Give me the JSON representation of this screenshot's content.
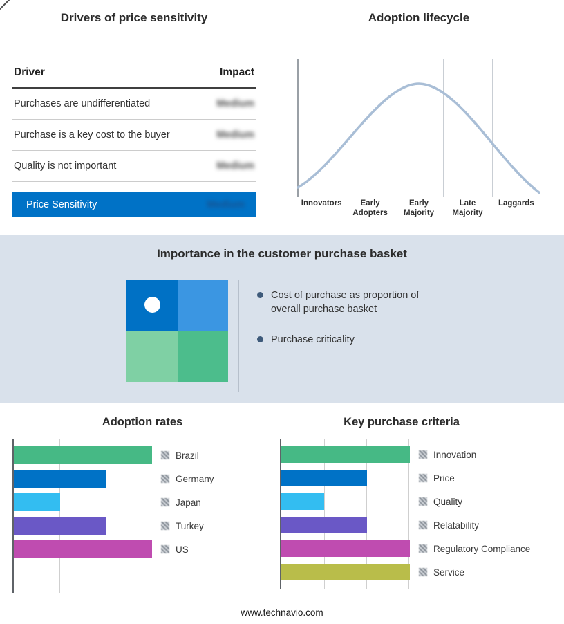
{
  "footer": {
    "url": "www.technavio.com"
  },
  "colors": {
    "accent_blue": "#0072c6",
    "band_background": "#d9e1eb",
    "curve_line": "#a9bed6",
    "bullet_dot": "#3e5a7a"
  },
  "drivers_panel": {
    "title": "Drivers of price sensitivity",
    "col_driver": "Driver",
    "col_impact": "Impact",
    "rows": [
      {
        "driver": "Purchases are undifferentiated",
        "impact": "Medium"
      },
      {
        "driver": "Purchase is a key cost to the buyer",
        "impact": "Medium"
      },
      {
        "driver": "Quality is not important",
        "impact": "Medium"
      }
    ],
    "summary": {
      "label": "Price Sensitivity",
      "impact": "Medium"
    }
  },
  "basket_panel": {
    "title": "Importance in the customer purchase basket",
    "bullets": [
      "Cost of purchase as proportion of overall purchase basket",
      "Purchase criticality"
    ],
    "quadrant_colors": [
      "#0071c5",
      "#3b96e2",
      "#7fd0a4",
      "#4cbd8c"
    ],
    "marker": "white-dot-top-left-quadrant"
  },
  "chart_data": [
    {
      "type": "line",
      "title": "Adoption lifecycle",
      "x_categories": [
        "Innovators",
        "Early Adopters",
        "Early Majority",
        "Late Majority",
        "Laggards"
      ],
      "values": [
        0.1,
        0.6,
        1.0,
        0.6,
        0.1
      ],
      "ylim": [
        0,
        1
      ],
      "curve": "bell",
      "line_color": "#a9bed6",
      "grid": true,
      "legend_position": "none"
    },
    {
      "type": "bar",
      "orientation": "horizontal",
      "title": "Adoption rates",
      "categories": [
        "Brazil",
        "Germany",
        "Japan",
        "Turkey",
        "US"
      ],
      "values": [
        3,
        2,
        1,
        2,
        3
      ],
      "colors": [
        "#46b985",
        "#0072c6",
        "#33bdf1",
        "#6a58c6",
        "#bf4cb0"
      ],
      "xlim": [
        0,
        3
      ],
      "grid": true,
      "legend_position": "right"
    },
    {
      "type": "bar",
      "orientation": "horizontal",
      "title": "Key purchase criteria",
      "categories": [
        "Innovation",
        "Price",
        "Quality",
        "Relatability",
        "Regulatory Compliance",
        "Service"
      ],
      "values": [
        3,
        2,
        1,
        2,
        3,
        3
      ],
      "colors": [
        "#46b985",
        "#0072c6",
        "#33bdf1",
        "#6a58c6",
        "#bf4cb0",
        "#b9bd4a"
      ],
      "xlim": [
        0,
        3
      ],
      "grid": true,
      "legend_position": "right"
    }
  ]
}
